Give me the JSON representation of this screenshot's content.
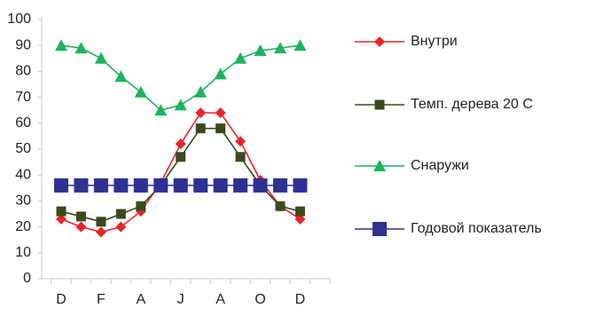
{
  "chart_data": {
    "type": "line",
    "categories": [
      "D",
      null,
      "F",
      null,
      "A",
      null,
      "J",
      null,
      "A",
      null,
      "O",
      null,
      "D"
    ],
    "series": [
      {
        "name": "Внутри",
        "color": "#e8252a",
        "marker": "diamond",
        "values": [
          23,
          20,
          18,
          20,
          26,
          37,
          52,
          64,
          64,
          53,
          38,
          28,
          23
        ]
      },
      {
        "name": "Темп. дерева 20 С",
        "color": "#3b4a1e",
        "marker": "square",
        "values": [
          26,
          24,
          22,
          25,
          28,
          36,
          47,
          58,
          58,
          47,
          36,
          28,
          26
        ]
      },
      {
        "name": "Снаружи",
        "color": "#1db35f",
        "marker": "triangle",
        "values": [
          90,
          89,
          85,
          78,
          72,
          65,
          67,
          72,
          79,
          85,
          88,
          89,
          90
        ]
      },
      {
        "name": "Годовой показатель",
        "color": "#2e3192",
        "marker": "bigsquare",
        "values": [
          36,
          36,
          36,
          36,
          36,
          36,
          36,
          36,
          36,
          36,
          36,
          36,
          36
        ]
      }
    ],
    "ylim": [
      0,
      100
    ],
    "yticks": [
      0,
      10,
      20,
      30,
      40,
      50,
      60,
      70,
      80,
      90,
      100
    ],
    "legend": "right"
  }
}
